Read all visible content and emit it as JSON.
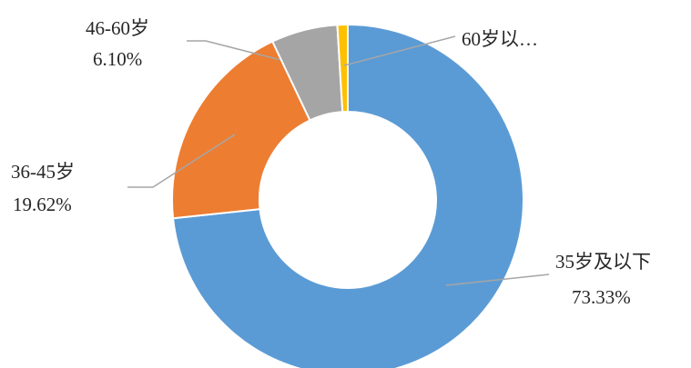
{
  "chart_data": {
    "type": "pie",
    "donut": true,
    "title": "",
    "slices": [
      {
        "label": "35岁及以下",
        "value": 73.33,
        "value_label": "73.33%",
        "color": "#5b9bd5"
      },
      {
        "label": "36-45岁",
        "value": 19.62,
        "value_label": "19.62%",
        "color": "#ed7d31"
      },
      {
        "label": "46-60岁",
        "value": 6.1,
        "value_label": "6.10%",
        "color": "#a5a5a5"
      },
      {
        "label": "60岁以…",
        "value": 0.95,
        "value_label": "",
        "color": "#ffc000"
      }
    ]
  }
}
